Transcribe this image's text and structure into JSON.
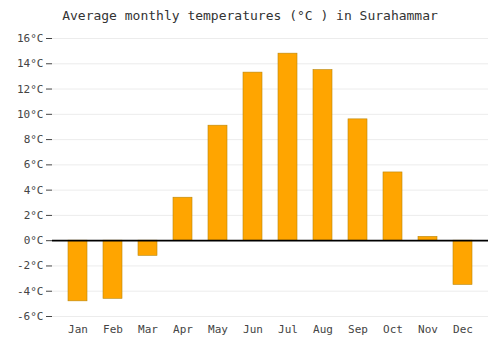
{
  "chart_data": {
    "type": "bar",
    "title": "Average monthly temperatures (°C ) in Surahammar",
    "categories": [
      "Jan",
      "Feb",
      "Mar",
      "Apr",
      "May",
      "Jun",
      "Jul",
      "Aug",
      "Sep",
      "Oct",
      "Nov",
      "Dec"
    ],
    "values": [
      -4.8,
      -4.6,
      -1.2,
      3.4,
      9.1,
      13.3,
      14.8,
      13.5,
      9.6,
      5.4,
      0.3,
      -3.5
    ],
    "color": "#FFA500",
    "ylim": [
      -6,
      16
    ],
    "yticks": [
      {
        "value": -6,
        "label": "-6°C"
      },
      {
        "value": -4,
        "label": "-4°C"
      },
      {
        "value": -2,
        "label": "-2°C"
      },
      {
        "value": 0,
        "label": "0°C"
      },
      {
        "value": 2,
        "label": "2°C"
      },
      {
        "value": 4,
        "label": "4°C"
      },
      {
        "value": 6,
        "label": "6°C"
      },
      {
        "value": 8,
        "label": "8°C"
      },
      {
        "value": 10,
        "label": "10°C"
      },
      {
        "value": 12,
        "label": "12°C"
      },
      {
        "value": 14,
        "label": "14°C"
      },
      {
        "value": 16,
        "label": "16°C"
      }
    ],
    "grid": true
  }
}
